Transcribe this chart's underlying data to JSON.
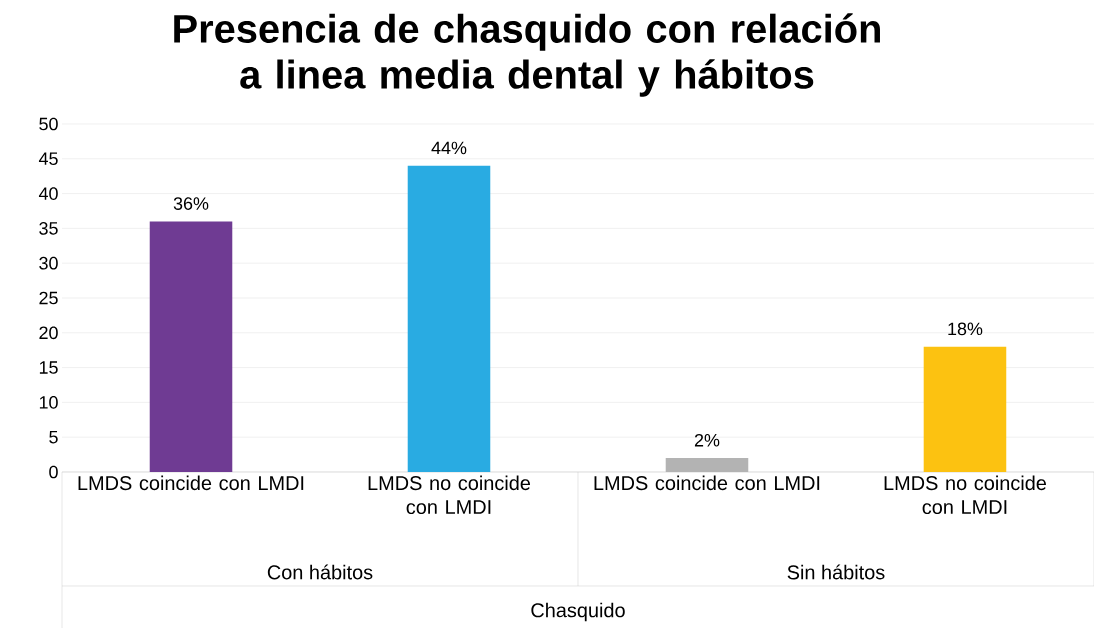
{
  "chart_data": {
    "type": "bar",
    "title": "Presencia de chasquido con relación a linea media dental y hábitos",
    "categories": [
      "LMDS coincide con LMDI",
      "LMDS no coincide con LMDI",
      "LMDS coincide con LMDI",
      "LMDS no coincide con LMDI"
    ],
    "values": [
      36,
      44,
      2,
      18
    ],
    "colors": [
      "#6f3b93",
      "#29abe2",
      "#b3b3b3",
      "#fcc211"
    ],
    "value_labels": [
      "36%",
      "44%",
      "2%",
      "18%"
    ],
    "ylim": [
      0,
      50
    ],
    "yticks": [
      0,
      5,
      10,
      15,
      20,
      25,
      30,
      35,
      40,
      45,
      50
    ],
    "grid": "y",
    "annotations": [
      "Con hábitos",
      "Sin hábitos",
      "Chasquido"
    ]
  }
}
